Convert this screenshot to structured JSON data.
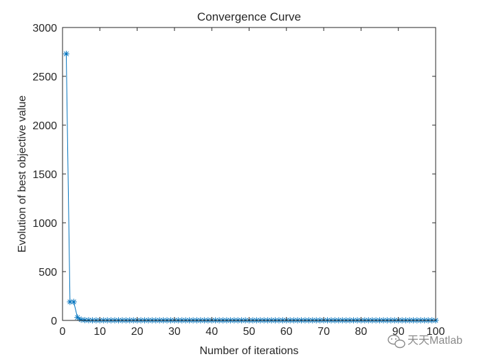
{
  "chart_data": {
    "type": "line",
    "title": "Convergence Curve",
    "xlabel": "Number of iterations",
    "ylabel": "Evolution of best objective value",
    "xlim": [
      0,
      100
    ],
    "ylim": [
      0,
      3000
    ],
    "xticks": [
      0,
      10,
      20,
      30,
      40,
      50,
      60,
      70,
      80,
      90,
      100
    ],
    "yticks": [
      0,
      500,
      1000,
      1500,
      2000,
      2500,
      3000
    ],
    "grid": false,
    "marker": "asterisk",
    "line_color": "#0072BD",
    "series": [
      {
        "x": [
          1,
          2,
          3,
          4,
          5,
          6,
          7,
          8,
          9,
          10,
          11,
          12,
          13,
          14,
          15,
          16,
          17,
          18,
          19,
          20,
          21,
          22,
          23,
          24,
          25,
          26,
          27,
          28,
          29,
          30,
          31,
          32,
          33,
          34,
          35,
          36,
          37,
          38,
          39,
          40,
          41,
          42,
          43,
          44,
          45,
          46,
          47,
          48,
          49,
          50,
          51,
          52,
          53,
          54,
          55,
          56,
          57,
          58,
          59,
          60,
          61,
          62,
          63,
          64,
          65,
          66,
          67,
          68,
          69,
          70,
          71,
          72,
          73,
          74,
          75,
          76,
          77,
          78,
          79,
          80,
          81,
          82,
          83,
          84,
          85,
          86,
          87,
          88,
          89,
          90,
          91,
          92,
          93,
          94,
          95,
          96,
          97,
          98,
          99,
          100
        ],
        "y": [
          2730,
          190,
          190,
          30,
          8,
          3,
          2,
          1,
          1,
          1,
          1,
          1,
          1,
          1,
          1,
          1,
          1,
          1,
          1,
          1,
          1,
          1,
          1,
          1,
          1,
          1,
          1,
          1,
          1,
          1,
          1,
          1,
          1,
          1,
          1,
          1,
          1,
          1,
          1,
          1,
          1,
          1,
          1,
          1,
          1,
          1,
          1,
          1,
          1,
          1,
          1,
          1,
          1,
          1,
          1,
          1,
          1,
          1,
          1,
          1,
          1,
          1,
          1,
          1,
          1,
          1,
          1,
          1,
          1,
          1,
          1,
          1,
          1,
          1,
          1,
          1,
          1,
          1,
          1,
          1,
          1,
          1,
          1,
          1,
          1,
          1,
          1,
          1,
          1,
          1,
          1,
          1,
          1,
          1,
          1,
          1,
          1,
          1,
          1,
          1
        ]
      }
    ]
  },
  "watermark": {
    "text": "天天Matlab",
    "icon": "wechat-icon"
  }
}
